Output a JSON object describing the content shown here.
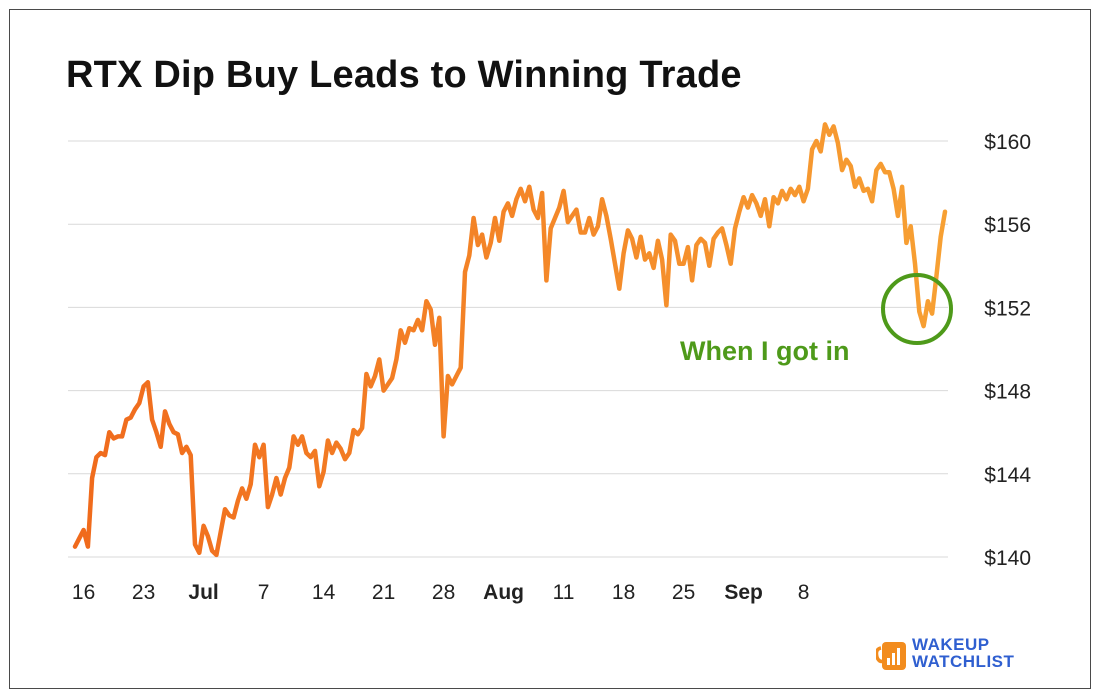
{
  "title": "RTX Dip Buy Leads to Winning Trade",
  "brand": {
    "line1": "WAKEUP",
    "line2": "WATCHLIST",
    "color": "#2f5fd0",
    "mug_color": "#f28c1e"
  },
  "annotation": {
    "text": "When I got in",
    "color": "#4e9a1a"
  },
  "chart_data": {
    "type": "line",
    "title": "RTX Dip Buy Leads to Winning Trade",
    "xlabel": "",
    "ylabel": "",
    "ylim": [
      140,
      161.5
    ],
    "y_ticks": [
      {
        "value": 140,
        "label": "$140"
      },
      {
        "value": 144,
        "label": "$144"
      },
      {
        "value": 148,
        "label": "$148"
      },
      {
        "value": 152,
        "label": "$152"
      },
      {
        "value": 156,
        "label": "$156"
      },
      {
        "value": 160,
        "label": "$160"
      }
    ],
    "x_ticks": [
      {
        "label": "16",
        "bold": false,
        "index": 2
      },
      {
        "label": "23",
        "bold": false,
        "index": 16
      },
      {
        "label": "Jul",
        "bold": true,
        "index": 30
      },
      {
        "label": "7",
        "bold": false,
        "index": 44
      },
      {
        "label": "14",
        "bold": false,
        "index": 58
      },
      {
        "label": "21",
        "bold": false,
        "index": 72
      },
      {
        "label": "28",
        "bold": false,
        "index": 86
      },
      {
        "label": "Aug",
        "bold": true,
        "index": 100
      },
      {
        "label": "11",
        "bold": false,
        "index": 114
      },
      {
        "label": "18",
        "bold": false,
        "index": 128
      },
      {
        "label": "25",
        "bold": false,
        "index": 142
      },
      {
        "label": "Sep",
        "bold": true,
        "index": 156
      },
      {
        "label": "8",
        "bold": false,
        "index": 170
      }
    ],
    "grid": true,
    "gradient": {
      "start": "#f06a1c",
      "end": "#f7a033"
    },
    "series": [
      {
        "values": [
          140.5,
          140.9,
          141.3,
          140.5,
          143.8,
          144.8,
          145.0,
          144.9,
          146.0,
          145.7,
          145.8,
          145.8,
          146.6,
          146.7,
          147.1,
          147.4,
          148.2,
          148.4,
          146.6,
          146.0,
          145.3,
          147.0,
          146.4,
          146.0,
          145.9,
          145.0,
          145.3,
          144.9,
          140.6,
          140.2,
          141.5,
          141.0,
          140.3,
          140.1,
          141.2,
          142.3,
          142.0,
          141.9,
          142.7,
          143.3,
          142.8,
          143.5,
          145.4,
          144.8,
          145.4,
          142.4,
          143.0,
          143.8,
          143.0,
          143.8,
          144.3,
          145.8,
          145.4,
          145.8,
          145.0,
          144.8,
          145.1,
          143.4,
          144.1,
          145.6,
          145.0,
          145.5,
          145.2,
          144.7,
          145.0,
          146.1,
          145.9,
          146.2,
          148.8,
          148.2,
          148.7,
          149.5,
          148.0,
          148.3,
          148.6,
          149.5,
          150.9,
          150.3,
          151.0,
          150.9,
          151.4,
          150.9,
          152.3,
          151.9,
          150.2,
          151.5,
          145.8,
          148.7,
          148.3,
          148.7,
          149.1,
          153.7,
          154.5,
          156.3,
          155.0,
          155.5,
          154.4,
          155.1,
          156.3,
          155.2,
          156.6,
          157.0,
          156.4,
          157.2,
          157.7,
          157.1,
          157.8,
          156.7,
          156.3,
          157.5,
          153.3,
          155.8,
          156.3,
          156.8,
          157.6,
          156.1,
          156.4,
          156.7,
          155.6,
          155.6,
          156.3,
          155.5,
          155.9,
          157.2,
          156.4,
          155.3,
          154.1,
          152.9,
          154.6,
          155.7,
          155.3,
          154.4,
          155.4,
          154.3,
          154.6,
          153.9,
          155.2,
          154.3,
          152.1,
          155.5,
          155.2,
          154.1,
          154.1,
          154.9,
          153.3,
          155.0,
          155.3,
          155.1,
          154.0,
          155.3,
          155.6,
          155.8,
          155.0,
          154.1,
          155.8,
          156.6,
          157.3,
          156.8,
          157.4,
          157.0,
          156.4,
          157.2,
          155.9,
          157.3,
          157.0,
          157.6,
          157.2,
          157.7,
          157.4,
          157.8,
          157.1,
          157.7,
          159.6,
          160.0,
          159.5,
          160.8,
          160.3,
          160.7,
          159.9,
          158.6,
          159.1,
          158.8,
          157.8,
          158.2,
          157.6,
          157.7,
          157.1,
          158.6,
          158.9,
          158.5,
          158.5,
          157.7,
          156.4,
          157.8,
          155.1,
          155.9,
          154.1,
          151.8,
          151.1,
          152.3,
          151.7,
          153.5,
          155.4,
          156.6
        ]
      }
    ]
  }
}
